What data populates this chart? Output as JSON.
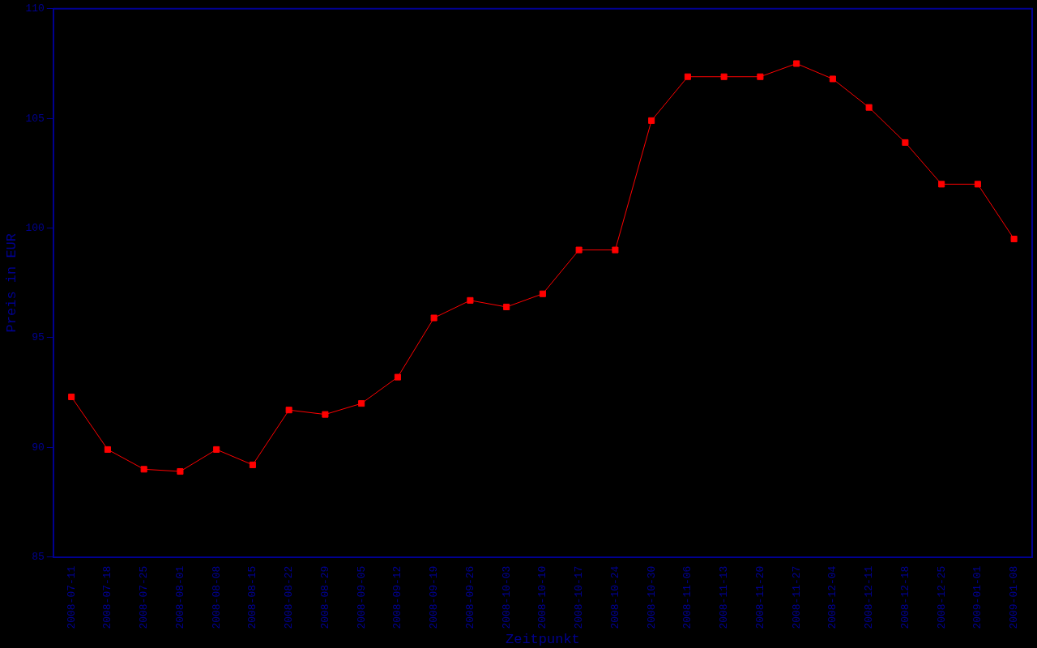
{
  "chart_data": {
    "type": "line",
    "xlabel": "Zeitpunkt",
    "ylabel": "Preis in EUR",
    "categories": [
      "2008-07-11",
      "2008-07-18",
      "2008-07-25",
      "2008-08-01",
      "2008-08-08",
      "2008-08-15",
      "2008-08-22",
      "2008-08-29",
      "2008-09-05",
      "2008-09-12",
      "2008-09-19",
      "2008-09-26",
      "2008-10-03",
      "2008-10-10",
      "2008-10-17",
      "2008-10-24",
      "2008-10-30",
      "2008-11-06",
      "2008-11-13",
      "2008-11-20",
      "2008-11-27",
      "2008-12-04",
      "2008-12-11",
      "2008-12-18",
      "2008-12-25",
      "2009-01-01",
      "2009-01-08"
    ],
    "series": [
      {
        "color": "#ff0000",
        "values": [
          92.3,
          89.9,
          89.0,
          88.9,
          89.9,
          89.2,
          91.7,
          91.5,
          92.0,
          93.2,
          95.9,
          96.7,
          96.4,
          97.0,
          99.0,
          99.0,
          104.9,
          106.9,
          106.9,
          106.9,
          107.5,
          106.8,
          105.5,
          103.9,
          102.0,
          102.0,
          99.5
        ]
      }
    ],
    "ylim": [
      85,
      110
    ],
    "yticks": [
      85,
      90,
      95,
      100,
      105,
      110
    ],
    "grid": false,
    "legend": false,
    "marker": "square",
    "line_style": "solid"
  }
}
